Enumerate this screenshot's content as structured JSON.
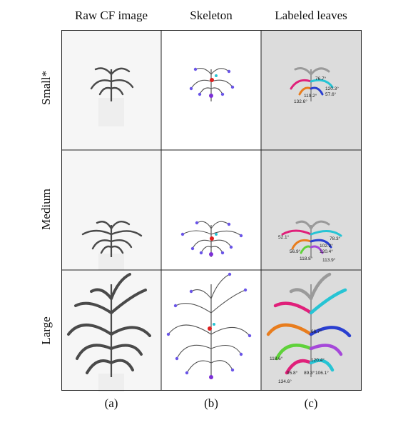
{
  "columns": [
    {
      "title": "Raw CF image",
      "letter": "(a)"
    },
    {
      "title": "Skeleton",
      "letter": "(b)"
    },
    {
      "title": "Labeled leaves",
      "letter": "(c)"
    }
  ],
  "rows": [
    {
      "label": "Small*",
      "angles": [
        "76.7°",
        "120.3°",
        "57.6°",
        "119.2°",
        "132.6°"
      ]
    },
    {
      "label": "Medium",
      "angles": [
        "52.1°",
        "78.3°",
        "102.2°",
        "56.9°",
        "120.4°",
        "118.8°",
        "113.9°"
      ]
    },
    {
      "label": "Large",
      "angles": [
        "66.7°",
        "118.6°",
        "120.4°",
        "95.8°",
        "89.3°",
        "134.6°",
        "106.1°"
      ]
    }
  ],
  "colors": {
    "plant": "#4a4a4a",
    "skeleton": "#555555",
    "node": "#6a55e8",
    "tip": "#7b2fd6",
    "junction": "#e02020",
    "leaf_cyan": "#27c4d4",
    "leaf_magenta": "#e0207a",
    "leaf_orange": "#e87d1e",
    "leaf_blue": "#2a3fd0",
    "leaf_green": "#5fd23a",
    "leaf_purple": "#a548d9",
    "panel_c_bg": "#dcdcdc"
  }
}
